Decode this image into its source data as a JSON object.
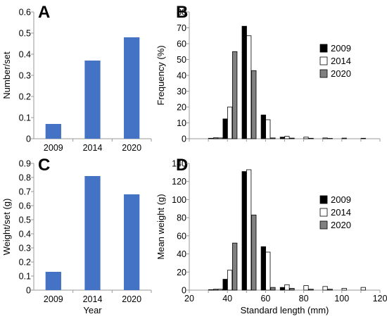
{
  "chart_data": [
    {
      "panel": "A",
      "type": "bar",
      "categories": [
        "2009",
        "2014",
        "2020"
      ],
      "values": [
        0.07,
        0.37,
        0.48
      ],
      "xlabel": "",
      "ylabel": "Number/set",
      "ylim": [
        0,
        0.6
      ],
      "yticks": [
        "0",
        "0.1",
        "0.2",
        "0.3",
        "0.4",
        "0.5",
        "0.6"
      ],
      "color": "#4472c4"
    },
    {
      "panel": "B",
      "type": "bar",
      "xlabel": "",
      "ylabel": "Frequency (%)",
      "xlim": [
        20,
        120
      ],
      "ylim": [
        0,
        80
      ],
      "yticks": [
        "0",
        "10",
        "20",
        "30",
        "40",
        "50",
        "60",
        "70",
        "80"
      ],
      "x": [
        30,
        35,
        40,
        45,
        50,
        55,
        60,
        65,
        70,
        75,
        80,
        85,
        90,
        95,
        100,
        105,
        110,
        115
      ],
      "series": [
        {
          "name": "2009",
          "color": "#000000",
          "values": [
            0,
            0.3,
            12.5,
            0,
            71,
            0,
            15,
            0,
            1,
            0,
            0,
            0,
            0,
            0,
            0,
            0,
            0,
            0
          ]
        },
        {
          "name": "2014",
          "color": "#ffffff",
          "values": [
            0.3,
            0.5,
            20,
            0,
            65,
            0,
            12,
            0,
            1.5,
            0,
            1,
            0,
            0.5,
            0,
            0.4,
            0,
            0.3,
            0
          ]
        },
        {
          "name": "2020",
          "color": "#808080",
          "values": [
            0,
            0.6,
            0,
            55,
            0,
            43,
            0,
            0.5,
            0,
            0.4,
            0,
            0.3,
            0,
            0.2,
            0,
            0,
            0,
            0
          ]
        }
      ]
    },
    {
      "panel": "C",
      "type": "bar",
      "categories": [
        "2009",
        "2014",
        "2020"
      ],
      "values": [
        0.13,
        0.81,
        0.68
      ],
      "xlabel": "Year",
      "ylabel": "Weight/set (g)",
      "ylim": [
        0,
        0.9
      ],
      "yticks": [
        "0",
        "0.1",
        "0.2",
        "0.3",
        "0.4",
        "0.5",
        "0.6",
        "0.7",
        "0.8",
        "0.9"
      ],
      "color": "#4472c4"
    },
    {
      "panel": "D",
      "type": "bar",
      "xlabel": "Standard length (mm)",
      "ylabel": "Mean weight (g)",
      "xlim": [
        20,
        120
      ],
      "ylim": [
        0,
        140
      ],
      "yticks": [
        "0",
        "20",
        "40",
        "60",
        "80",
        "100",
        "120",
        "140"
      ],
      "xticks": [
        "20",
        "40",
        "60",
        "80",
        "100",
        "120"
      ],
      "x": [
        30,
        35,
        40,
        45,
        50,
        55,
        60,
        65,
        70,
        75,
        80,
        85,
        90,
        95,
        100,
        105,
        110,
        115
      ],
      "series": [
        {
          "name": "2009",
          "color": "#000000",
          "values": [
            0,
            0.5,
            12,
            0,
            131,
            0,
            48,
            0,
            3,
            0,
            0,
            0,
            0,
            0,
            0,
            0,
            0,
            0
          ]
        },
        {
          "name": "2014",
          "color": "#ffffff",
          "values": [
            0.5,
            1,
            22,
            0,
            133,
            0,
            42,
            0,
            6,
            0,
            5,
            0,
            4,
            0,
            2,
            0,
            3,
            0
          ]
        },
        {
          "name": "2020",
          "color": "#808080",
          "values": [
            0,
            1,
            0,
            52,
            0,
            83,
            0,
            3,
            0,
            2,
            0,
            1,
            0,
            1,
            0,
            0,
            0,
            0
          ]
        }
      ]
    }
  ]
}
